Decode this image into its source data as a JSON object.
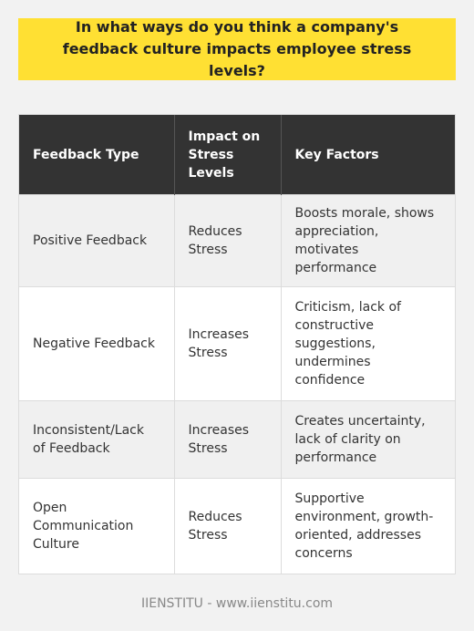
{
  "question": "In what ways do you think a company's feedback culture impacts employee stress levels?",
  "table": {
    "headers": [
      "Feedback Type",
      "Impact on Stress Levels",
      "Key Factors"
    ],
    "rows": [
      {
        "type": "Positive Feedback",
        "impact": "Reduces Stress",
        "factors": "Boosts morale, shows appreciation, motivates performance"
      },
      {
        "type": "Negative Feedback",
        "impact": "Increases Stress",
        "factors": "Criticism, lack of constructive suggestions, undermines confidence"
      },
      {
        "type": "Inconsistent/Lack of Feedback",
        "impact": "Increases Stress",
        "factors": "Creates uncertainty, lack of clarity on performance"
      },
      {
        "type": "Open Communication Culture",
        "impact": "Reduces Stress",
        "factors": "Supportive environment, growth-oriented, addresses concerns"
      }
    ]
  },
  "footer": "IIENSTITU - www.iienstitu.com",
  "colors": {
    "question_bg": "#ffe033",
    "header_bg": "#333333",
    "row_alt_bg": "#f0f0f0",
    "page_bg": "#f2f2f2"
  }
}
